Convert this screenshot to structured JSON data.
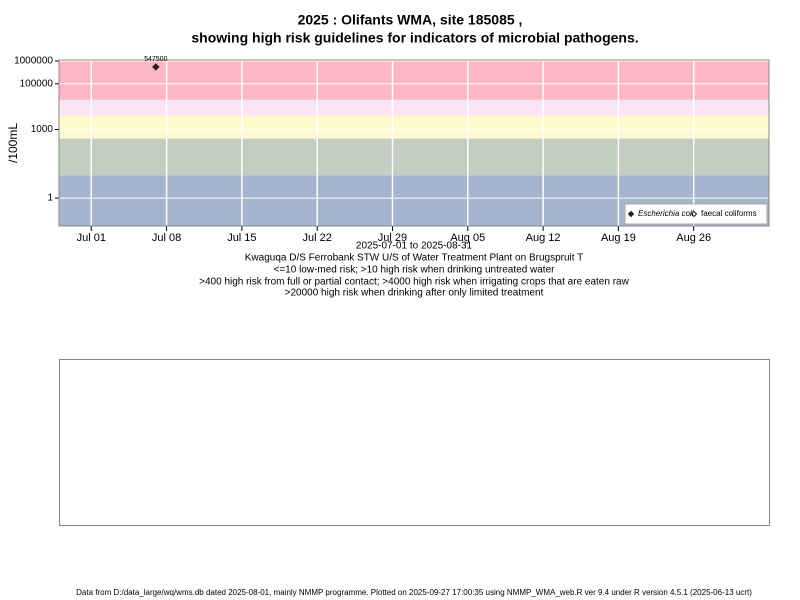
{
  "chart_data": {
    "type": "scatter",
    "title": [
      "2025 : Olifants WMA, site 185085 ,",
      "showing high risk guidelines for indicators of microbial pathogens."
    ],
    "ylabel": "/100mL",
    "xlabel": "2025-07-01 to 2025-08-31",
    "notes": [
      "Kwaguqa D/S Ferrobank STW U/S of Water Treatment Plant on Brugspruit T",
      "<=10 low-med risk; >10 high risk when drinking untreated water",
      ">400 high risk from full or partial contact; >4000 high risk when irrigating crops that are eaten raw",
      ">20000 high risk when drinking after only limited treatment"
    ],
    "footer": "Data from D:/data_large/wq/wms.db dated 2025-08-01, mainly NMMP programme. Plotted on 2025-09-27 17:00:35 using NMMP_WMA_web.R ver 9.4 under R version 4.5.1 (2025-06-13 ucrt)",
    "log_y": true,
    "ylim": [
      0.06,
      1100000
    ],
    "yticks": [
      1,
      1000,
      100000,
      1000000
    ],
    "xlim": [
      "2025-06-28",
      "2025-09-02"
    ],
    "xticks": [
      {
        "value": "2025-07-01",
        "label": "Jul 01"
      },
      {
        "value": "2025-07-08",
        "label": "Jul 08"
      },
      {
        "value": "2025-07-15",
        "label": "Jul 15"
      },
      {
        "value": "2025-07-22",
        "label": "Jul 22"
      },
      {
        "value": "2025-07-29",
        "label": "Jul 29"
      },
      {
        "value": "2025-08-05",
        "label": "Aug 05"
      },
      {
        "value": "2025-08-12",
        "label": "Aug 12"
      },
      {
        "value": "2025-08-19",
        "label": "Aug 19"
      },
      {
        "value": "2025-08-26",
        "label": "Aug 26"
      }
    ],
    "thresholds": [
      10,
      400,
      4000,
      20000
    ],
    "band_colors": [
      "#a5b5cd",
      "#c3cdc1",
      "#fffacd",
      "#fde3f7",
      "#ffb7c3"
    ],
    "grid": true,
    "legend": "bottom-right",
    "series": [
      {
        "name": "Escherichia coli",
        "color": "#222222",
        "marker": "filled-diamond",
        "x": [
          "2025-07-07"
        ],
        "values": [
          547500
        ]
      },
      {
        "name": "faecal coliforms",
        "color": "#222222",
        "marker": "open-diamond",
        "x": [],
        "values": []
      }
    ]
  }
}
